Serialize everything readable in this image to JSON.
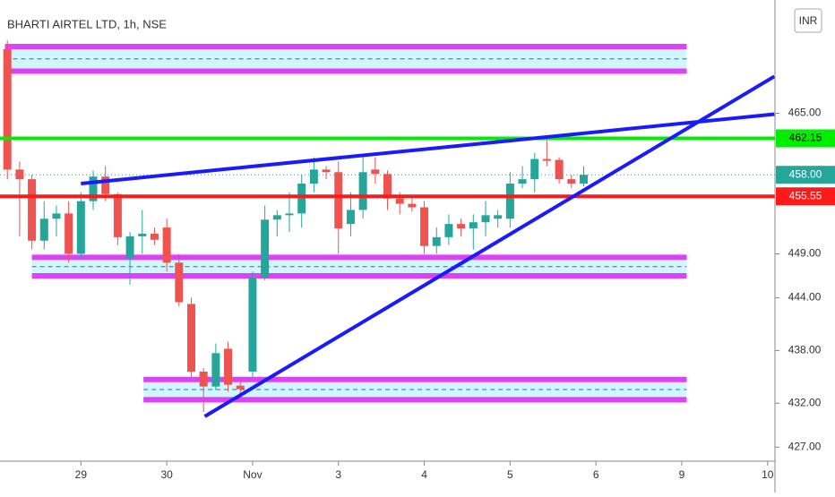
{
  "chart_data": {
    "type": "candlestick",
    "title": "BHARTI AIRTEL LTD, 1h, NSE",
    "currency": "INR",
    "up_color": "#26a69a",
    "down_color": "#ef5350",
    "open": [
      472.3,
      458.6,
      457.5,
      450.5,
      453,
      453.6,
      449,
      455,
      457.8,
      455.8,
      448.5,
      451,
      451.3,
      452,
      448,
      443.3,
      435.6,
      433.9,
      438.2,
      434,
      435.6,
      446.3,
      452.9,
      453.4,
      453.6,
      457,
      458.6,
      458.3,
      452.4,
      454,
      458.6,
      458.1,
      455.3,
      454.7,
      454.3,
      449.9,
      450.9,
      452.4,
      451.9,
      452.6,
      453,
      453,
      457,
      457.5,
      459.8,
      459.7,
      457.5,
      457
    ],
    "high": [
      473.3,
      459.5,
      458,
      455,
      454.5,
      455,
      456,
      458.5,
      459,
      456,
      451.5,
      454,
      452,
      453,
      449,
      444,
      436,
      438.8,
      439,
      434.5,
      447,
      454.5,
      454,
      456,
      458,
      460,
      459,
      459.5,
      456,
      460,
      460,
      458.5,
      456,
      455.5,
      455,
      452,
      453.5,
      453,
      453.5,
      455,
      454,
      458.3,
      459,
      460.5,
      462.2,
      460,
      458,
      459
    ],
    "low": [
      457.5,
      451,
      449.5,
      449.5,
      451,
      448,
      448.5,
      454,
      455,
      450,
      445.5,
      449,
      450,
      447,
      443,
      435,
      431,
      433.5,
      433.3,
      433,
      435,
      446,
      451,
      451.5,
      452,
      456,
      457.5,
      449,
      451,
      453,
      457,
      454,
      453.5,
      453.8,
      449,
      449,
      450,
      451,
      449.5,
      451,
      452,
      452,
      456.5,
      456,
      459,
      457,
      456.5,
      456.7
    ],
    "close": [
      458.6,
      457.5,
      450.5,
      453,
      453.6,
      449,
      455,
      457.8,
      455.8,
      450.9,
      451,
      451.3,
      450.6,
      448,
      443.5,
      435.6,
      433.9,
      437.7,
      434.1,
      433.6,
      446.3,
      452.9,
      453.4,
      453.6,
      457,
      458.6,
      458.3,
      451.9,
      454,
      458.3,
      458.1,
      455.3,
      454.7,
      454.3,
      449.9,
      450.9,
      452.4,
      451.9,
      452.6,
      453.4,
      453.4,
      457,
      457.5,
      459.8,
      459.6,
      457.5,
      457,
      458
    ],
    "xlim": [
      -0.6,
      62.6
    ],
    "ylim": [
      425.4,
      477.9
    ],
    "xticks": [
      {
        "value": 6,
        "label": "29"
      },
      {
        "value": 13,
        "label": "30"
      },
      {
        "value": 20,
        "label": "Nov"
      },
      {
        "value": 27,
        "label": "3"
      },
      {
        "value": 34,
        "label": "4"
      },
      {
        "value": 41,
        "label": "5"
      },
      {
        "value": 48,
        "label": "6"
      },
      {
        "value": 55,
        "label": "9"
      },
      {
        "value": 62,
        "label": "10"
      }
    ],
    "yticks": [
      {
        "value": 465,
        "label": "465.00"
      },
      {
        "value": 449,
        "label": "449.00"
      },
      {
        "value": 444,
        "label": "444.00"
      },
      {
        "value": 438,
        "label": "438.00"
      },
      {
        "value": 432,
        "label": "432.00"
      },
      {
        "value": 427,
        "label": "427.00"
      }
    ],
    "price_lines": [
      {
        "value": 462.15,
        "label": "462.15",
        "color": "#00ee00",
        "text_color": "#000000",
        "style": "solid"
      },
      {
        "value": 458,
        "label": "458.00",
        "color": "#26a69a",
        "text_color": "#ffffff",
        "style": "dotted"
      },
      {
        "value": 455.55,
        "label": "455.55",
        "color": "#ff1a1a",
        "text_color": "#ffffff",
        "style": "solid"
      }
    ],
    "zones": [
      {
        "from": -0.2,
        "to": 55.4,
        "low": 469.8,
        "high": 472.6
      },
      {
        "from": 2,
        "to": 55.4,
        "low": 446.5,
        "high": 448.6
      },
      {
        "from": 11.1,
        "to": 55.4,
        "low": 432.4,
        "high": 434.7
      }
    ],
    "zone_color": "#e040fb",
    "trendlines": [
      {
        "x": [
          6,
          62.55
        ],
        "y": [
          457,
          464.9
        ]
      },
      {
        "x": [
          16.1,
          62.55
        ],
        "y": [
          430.5,
          469.2
        ]
      }
    ],
    "trend_color": "#1a1aff"
  }
}
